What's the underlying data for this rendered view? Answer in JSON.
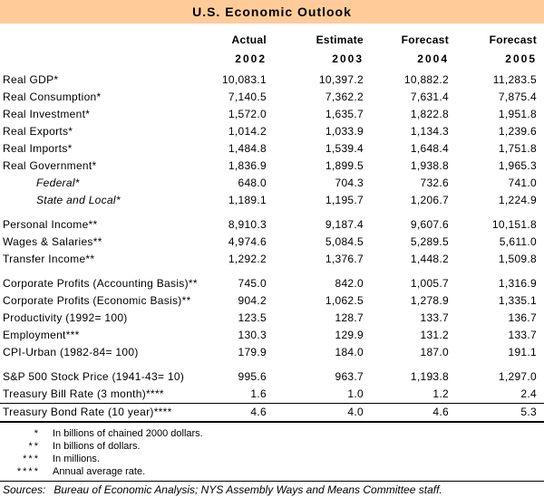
{
  "title": "U.S. Economic Outlook",
  "colors": {
    "title_band": "#FFCC99",
    "text": "#000000",
    "rule": "#000000"
  },
  "columns": [
    {
      "label": "Actual",
      "year": "2002"
    },
    {
      "label": "Estimate",
      "year": "2003"
    },
    {
      "label": "Forecast",
      "year": "2004"
    },
    {
      "label": "Forecast",
      "year": "2005"
    }
  ],
  "sections": [
    {
      "rows": [
        {
          "label": "Real GDP*",
          "indent": false,
          "values": [
            "10,083.1",
            "10,397.2",
            "10,882.2",
            "11,283.5"
          ]
        },
        {
          "label": "Real Consumption*",
          "indent": false,
          "values": [
            "7,140.5",
            "7,362.2",
            "7,631.4",
            "7,875.4"
          ]
        },
        {
          "label": "Real Investment*",
          "indent": false,
          "values": [
            "1,572.0",
            "1,635.7",
            "1,822.8",
            "1,951.8"
          ]
        },
        {
          "label": "Real Exports*",
          "indent": false,
          "values": [
            "1,014.2",
            "1,033.9",
            "1,134.3",
            "1,239.6"
          ]
        },
        {
          "label": "Real Imports*",
          "indent": false,
          "values": [
            "1,484.8",
            "1,539.4",
            "1,648.4",
            "1,751.8"
          ]
        },
        {
          "label": "Real Government*",
          "indent": false,
          "values": [
            "1,836.9",
            "1,899.5",
            "1,938.8",
            "1,965.3"
          ]
        },
        {
          "label": "Federal*",
          "indent": true,
          "values": [
            "648.0",
            "704.3",
            "732.6",
            "741.0"
          ]
        },
        {
          "label": "State and Local*",
          "indent": true,
          "values": [
            "1,189.1",
            "1,195.7",
            "1,206.7",
            "1,224.9"
          ]
        }
      ]
    },
    {
      "rows": [
        {
          "label": "Personal Income**",
          "indent": false,
          "values": [
            "8,910.3",
            "9,187.4",
            "9,607.6",
            "10,151.8"
          ]
        },
        {
          "label": "Wages & Salaries**",
          "indent": false,
          "values": [
            "4,974.6",
            "5,084.5",
            "5,289.5",
            "5,611.0"
          ]
        },
        {
          "label": "Transfer Income**",
          "indent": false,
          "values": [
            "1,292.2",
            "1,376.7",
            "1,448.2",
            "1,509.8"
          ]
        }
      ]
    },
    {
      "rows": [
        {
          "label": "Corporate Profits (Accounting Basis)**",
          "indent": false,
          "values": [
            "745.0",
            "842.0",
            "1,005.7",
            "1,316.9"
          ]
        },
        {
          "label": "Corporate Profits (Economic Basis)**",
          "indent": false,
          "values": [
            "904.2",
            "1,062.5",
            "1,278.9",
            "1,335.1"
          ]
        },
        {
          "label": "Productivity (1992= 100)",
          "indent": false,
          "values": [
            "123.5",
            "128.7",
            "133.7",
            "136.7"
          ]
        },
        {
          "label": "Employment***",
          "indent": false,
          "values": [
            "130.3",
            "129.9",
            "131.2",
            "133.7"
          ]
        },
        {
          "label": "CPI-Urban (1982-84= 100)",
          "indent": false,
          "values": [
            "179.9",
            "184.0",
            "187.0",
            "191.1"
          ]
        }
      ]
    },
    {
      "rows": [
        {
          "label": "S&P 500 Stock Price (1941-43= 10)",
          "indent": false,
          "values": [
            "995.6",
            "963.7",
            "1,193.8",
            "1,297.0"
          ]
        },
        {
          "label": "Treasury Bill Rate (3 month)****",
          "indent": false,
          "values": [
            "1.6",
            "1.0",
            "1.2",
            "2.4"
          ]
        },
        {
          "label": "Treasury Bond Rate (10 year)****",
          "indent": false,
          "values": [
            "4.6",
            "4.0",
            "4.6",
            "5.3"
          ]
        }
      ]
    }
  ],
  "footnotes": [
    {
      "marker": "*",
      "text": "In billions of chained 2000 dollars."
    },
    {
      "marker": "**",
      "text": "In billions of dollars."
    },
    {
      "marker": "***",
      "text": "In millions."
    },
    {
      "marker": "****",
      "text": "Annual average rate."
    }
  ],
  "sources": {
    "prefix": "Sources:",
    "text": "Bureau of Economic Analysis; NYS Assembly Ways and Means Committee staff."
  }
}
